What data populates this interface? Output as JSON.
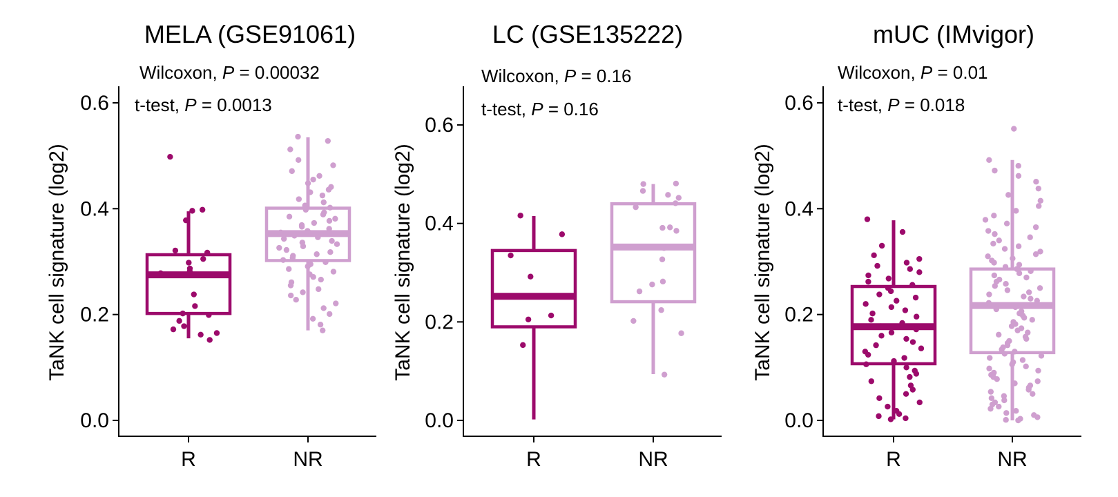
{
  "colors": {
    "R": "#9c0a6b",
    "NR": "#cf9fcf"
  },
  "chart_data": [
    {
      "type": "boxplot",
      "title": "MELA (GSE91061)",
      "ylabel": "TaNK cell signature (log2)",
      "xlabel": "",
      "categories": [
        "R",
        "NR"
      ],
      "ylim": [
        -0.03,
        0.63
      ],
      "yticks": [
        "0.0",
        "0.2",
        "0.4",
        "0.6"
      ],
      "ytick_values": [
        0.0,
        0.2,
        0.4,
        0.6
      ],
      "grid": false,
      "stats": {
        "wilcoxon": {
          "prefix": "Wilcoxon, ",
          "p_label": "P",
          "eq": " = ",
          "value": "0.00032"
        },
        "ttest": {
          "prefix": "t-test,  ",
          "p_label": "P",
          "eq": " = ",
          "value": "0.0013"
        }
      },
      "boxes": [
        {
          "group": "R",
          "q1": 0.202,
          "median": 0.275,
          "q3": 0.313,
          "whisker_low": 0.155,
          "whisker_high": 0.395,
          "points": [
            0.498,
            0.398,
            0.396,
            0.378,
            0.321,
            0.317,
            0.305,
            0.298,
            0.287,
            0.282,
            0.278,
            0.238,
            0.216,
            0.202,
            0.199,
            0.188,
            0.178,
            0.172,
            0.165,
            0.162,
            0.152
          ]
        },
        {
          "group": "NR",
          "q1": 0.302,
          "median": 0.353,
          "q3": 0.401,
          "whisker_low": 0.17,
          "whisker_high": 0.535,
          "points": [
            0.536,
            0.528,
            0.512,
            0.492,
            0.482,
            0.471,
            0.462,
            0.455,
            0.448,
            0.441,
            0.436,
            0.431,
            0.425,
            0.418,
            0.412,
            0.406,
            0.402,
            0.398,
            0.393,
            0.389,
            0.385,
            0.381,
            0.377,
            0.373,
            0.369,
            0.366,
            0.362,
            0.358,
            0.355,
            0.352,
            0.349,
            0.346,
            0.343,
            0.339,
            0.336,
            0.333,
            0.329,
            0.326,
            0.322,
            0.318,
            0.314,
            0.311,
            0.307,
            0.303,
            0.299,
            0.295,
            0.291,
            0.286,
            0.281,
            0.276,
            0.271,
            0.266,
            0.261,
            0.255,
            0.248,
            0.242,
            0.236,
            0.228,
            0.221,
            0.212,
            0.201,
            0.192,
            0.181,
            0.17
          ]
        }
      ]
    },
    {
      "type": "boxplot",
      "title": "LC (GSE135222)",
      "ylabel": "TaNK cell signature (log2)",
      "xlabel": "",
      "categories": [
        "R",
        "NR"
      ],
      "ylim": [
        -0.03,
        0.68
      ],
      "yticks": [
        "0.0",
        "0.2",
        "0.4",
        "0.6"
      ],
      "ytick_values": [
        0.0,
        0.2,
        0.4,
        0.6
      ],
      "grid": false,
      "stats": {
        "wilcoxon": {
          "prefix": "Wilcoxon, ",
          "p_label": "P",
          "eq": " = ",
          "value": "0.16"
        },
        "ttest": {
          "prefix": "t-test, ",
          "p_label": "P",
          "eq": " = ",
          "value": "0.16"
        }
      },
      "boxes": [
        {
          "group": "R",
          "q1": 0.19,
          "median": 0.252,
          "q3": 0.345,
          "whisker_low": 0.002,
          "whisker_high": 0.415,
          "points": [
            0.416,
            0.378,
            0.335,
            0.292,
            0.213,
            0.205,
            0.153
          ]
        },
        {
          "group": "NR",
          "q1": 0.241,
          "median": 0.352,
          "q3": 0.44,
          "whisker_low": 0.094,
          "whisker_high": 0.48,
          "points": [
            0.481,
            0.48,
            0.466,
            0.458,
            0.452,
            0.441,
            0.433,
            0.392,
            0.391,
            0.385,
            0.35,
            0.327,
            0.282,
            0.276,
            0.262,
            0.224,
            0.202,
            0.177,
            0.093
          ]
        }
      ]
    },
    {
      "type": "boxplot",
      "title": "mUC (IMvigor)",
      "ylabel": "TaNK cell signature (log2)",
      "xlabel": "",
      "categories": [
        "R",
        "NR"
      ],
      "ylim": [
        -0.03,
        0.63
      ],
      "yticks": [
        "0.0",
        "0.2",
        "0.4",
        "0.6"
      ],
      "ytick_values": [
        0.0,
        0.2,
        0.4,
        0.6
      ],
      "grid": false,
      "stats": {
        "wilcoxon": {
          "prefix": "Wilcoxon, ",
          "p_label": "P",
          "eq": " = ",
          "value": "0.01"
        },
        "ttest": {
          "prefix": "t-test, ",
          "p_label": "P",
          "eq": " = ",
          "value": "0.018"
        }
      },
      "boxes": [
        {
          "group": "R",
          "q1": 0.107,
          "median": 0.177,
          "q3": 0.253,
          "whisker_low": 0.002,
          "whisker_high": 0.378,
          "points": [
            0.38,
            0.356,
            0.33,
            0.312,
            0.305,
            0.298,
            0.292,
            0.286,
            0.28,
            0.274,
            0.268,
            0.262,
            0.256,
            0.25,
            0.244,
            0.238,
            0.232,
            0.226,
            0.22,
            0.214,
            0.208,
            0.202,
            0.196,
            0.19,
            0.184,
            0.178,
            0.172,
            0.166,
            0.16,
            0.154,
            0.148,
            0.142,
            0.136,
            0.13,
            0.124,
            0.118,
            0.112,
            0.106,
            0.1,
            0.094,
            0.088,
            0.082,
            0.074,
            0.066,
            0.058,
            0.05,
            0.042,
            0.034,
            0.026,
            0.018,
            0.012,
            0.008,
            0.004,
            0.002
          ]
        },
        {
          "group": "NR",
          "q1": 0.128,
          "median": 0.217,
          "q3": 0.286,
          "whisker_low": 0.0,
          "whisker_high": 0.492,
          "points": [
            0.551,
            0.492,
            0.481,
            0.472,
            0.462,
            0.451,
            0.438,
            0.426,
            0.415,
            0.405,
            0.396,
            0.387,
            0.379,
            0.372,
            0.365,
            0.358,
            0.352,
            0.346,
            0.34,
            0.334,
            0.329,
            0.324,
            0.319,
            0.314,
            0.31,
            0.306,
            0.302,
            0.298,
            0.294,
            0.29,
            0.286,
            0.282,
            0.278,
            0.274,
            0.27,
            0.266,
            0.262,
            0.258,
            0.254,
            0.25,
            0.246,
            0.242,
            0.238,
            0.234,
            0.23,
            0.226,
            0.222,
            0.218,
            0.214,
            0.21,
            0.206,
            0.202,
            0.198,
            0.194,
            0.19,
            0.186,
            0.182,
            0.178,
            0.174,
            0.17,
            0.166,
            0.162,
            0.158,
            0.154,
            0.15,
            0.146,
            0.142,
            0.138,
            0.134,
            0.13,
            0.126,
            0.122,
            0.118,
            0.114,
            0.11,
            0.106,
            0.102,
            0.098,
            0.094,
            0.09,
            0.086,
            0.082,
            0.078,
            0.074,
            0.07,
            0.066,
            0.062,
            0.058,
            0.054,
            0.05,
            0.046,
            0.042,
            0.038,
            0.034,
            0.03,
            0.026,
            0.022,
            0.018,
            0.014,
            0.01,
            0.006,
            0.003,
            0.001,
            0.0
          ]
        }
      ]
    }
  ]
}
